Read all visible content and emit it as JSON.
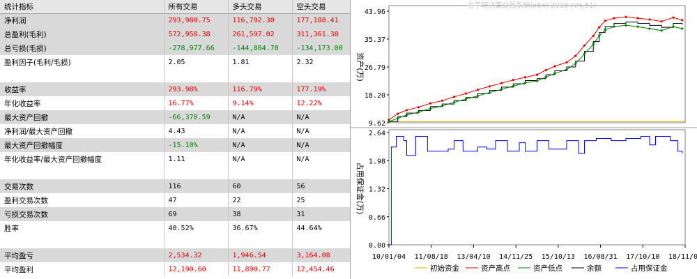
{
  "table": {
    "headers": [
      "统计指标",
      "所有交易",
      "多头交易",
      "空头交易"
    ],
    "rows": [
      {
        "label": "净利润",
        "cells": [
          {
            "v": "293,980.75",
            "c": "red"
          },
          {
            "v": "116,792.30",
            "c": "red"
          },
          {
            "v": "177,188.41",
            "c": "red"
          }
        ],
        "shade": true
      },
      {
        "label": "总盈利(毛利)",
        "cells": [
          {
            "v": "572,958.38",
            "c": "red"
          },
          {
            "v": "261,597.02",
            "c": "red"
          },
          {
            "v": "311,361.38",
            "c": "red"
          }
        ],
        "shade": true
      },
      {
        "label": "总亏损(毛损)",
        "cells": [
          {
            "v": "-278,977.66",
            "c": "green"
          },
          {
            "v": "-144,804.70",
            "c": "green"
          },
          {
            "v": "-134,173.00",
            "c": "green"
          }
        ],
        "shade": true
      },
      {
        "label": "盈利因子(毛利/毛损)",
        "cells": [
          {
            "v": "2.05",
            "c": "black"
          },
          {
            "v": "1.81",
            "c": "black"
          },
          {
            "v": "2.32",
            "c": "black"
          }
        ],
        "shade": false
      },
      {
        "label": "",
        "cells": [
          {
            "v": "",
            "c": "black"
          },
          {
            "v": "",
            "c": "black"
          },
          {
            "v": "",
            "c": "black"
          }
        ],
        "shade": false,
        "blank": true
      },
      {
        "label": "收益率",
        "cells": [
          {
            "v": "293.98%",
            "c": "red"
          },
          {
            "v": "116.79%",
            "c": "red"
          },
          {
            "v": "177.19%",
            "c": "red"
          }
        ],
        "shade": true
      },
      {
        "label": "年化收益率",
        "cells": [
          {
            "v": "16.77%",
            "c": "red"
          },
          {
            "v": "9.14%",
            "c": "red"
          },
          {
            "v": "12.22%",
            "c": "red"
          }
        ],
        "shade": false
      },
      {
        "label": "最大资产回撤",
        "cells": [
          {
            "v": "-66,370.59",
            "c": "green"
          },
          {
            "v": "N/A",
            "c": "black"
          },
          {
            "v": "N/A",
            "c": "black"
          }
        ],
        "shade": true
      },
      {
        "label": "净利润/最大资产回撤",
        "cells": [
          {
            "v": "4.43",
            "c": "black"
          },
          {
            "v": "N/A",
            "c": "black"
          },
          {
            "v": "N/A",
            "c": "black"
          }
        ],
        "shade": false
      },
      {
        "label": "最大资产回撤幅度",
        "cells": [
          {
            "v": "-15.10%",
            "c": "green"
          },
          {
            "v": "N/A",
            "c": "black"
          },
          {
            "v": "N/A",
            "c": "black"
          }
        ],
        "shade": true
      },
      {
        "label": "年化收益率/最大资产回撤幅度",
        "cells": [
          {
            "v": "1.11",
            "c": "black"
          },
          {
            "v": "N/A",
            "c": "black"
          },
          {
            "v": "N/A",
            "c": "black"
          }
        ],
        "shade": false
      },
      {
        "label": "",
        "cells": [
          {
            "v": "",
            "c": "black"
          },
          {
            "v": "",
            "c": "black"
          },
          {
            "v": "",
            "c": "black"
          }
        ],
        "shade": false,
        "blank": true
      },
      {
        "label": "交易次数",
        "cells": [
          {
            "v": "116",
            "c": "black"
          },
          {
            "v": "60",
            "c": "black"
          },
          {
            "v": "56",
            "c": "black"
          }
        ],
        "shade": true
      },
      {
        "label": "盈利交易次数",
        "cells": [
          {
            "v": "47",
            "c": "black"
          },
          {
            "v": "22",
            "c": "black"
          },
          {
            "v": "25",
            "c": "black"
          }
        ],
        "shade": false
      },
      {
        "label": "亏损交易次数",
        "cells": [
          {
            "v": "69",
            "c": "black"
          },
          {
            "v": "38",
            "c": "black"
          },
          {
            "v": "31",
            "c": "black"
          }
        ],
        "shade": true
      },
      {
        "label": "胜率",
        "cells": [
          {
            "v": "40.52%",
            "c": "black"
          },
          {
            "v": "36.67%",
            "c": "black"
          },
          {
            "v": "44.64%",
            "c": "black"
          }
        ],
        "shade": false
      },
      {
        "label": "",
        "cells": [
          {
            "v": "",
            "c": "black"
          },
          {
            "v": "",
            "c": "black"
          },
          {
            "v": "",
            "c": "black"
          }
        ],
        "shade": false,
        "blank": true
      },
      {
        "label": "平均盈亏",
        "cells": [
          {
            "v": "2,534.32",
            "c": "red"
          },
          {
            "v": "1,946.54",
            "c": "red"
          },
          {
            "v": "3,164.08",
            "c": "red"
          }
        ],
        "shade": true
      },
      {
        "label": "平均盈利",
        "cells": [
          {
            "v": "12,190.60",
            "c": "red"
          },
          {
            "v": "11,890.77",
            "c": "red"
          },
          {
            "v": "12,454.46",
            "c": "red"
          }
        ],
        "shade": false
      }
    ]
  },
  "chart": {
    "watermark": "金字塔决策交易系统(x64) 2018 (V4.51)",
    "colors": {
      "initial": "#c8b400",
      "high": "#e00000",
      "low": "#008000",
      "balance": "#000000",
      "margin": "#0000e0"
    },
    "upper_ylabel": "资产(万)",
    "lower_ylabel": "占用保证金(万)",
    "upper_ticks": [
      "43.96",
      "35.37",
      "26.79",
      "18.20",
      "9.62"
    ],
    "lower_ticks": [
      "2.64",
      "1.98",
      "1.32",
      "0.66",
      "0.00"
    ],
    "x_ticks": [
      "10/01/04",
      "11/08/18",
      "13/04/10",
      "14/11/25",
      "15/10/13",
      "16/08/31",
      "17/10/10",
      "18/11/08"
    ],
    "legend": [
      {
        "key": "initial",
        "label": "初始资金",
        "icon": "line-icon"
      },
      {
        "key": "high",
        "label": "资产高点",
        "icon": "line-icon"
      },
      {
        "key": "low",
        "label": "资产低点",
        "icon": "line-icon"
      },
      {
        "key": "balance",
        "label": "余额",
        "icon": "line-icon"
      },
      {
        "key": "margin",
        "label": "占用保证金",
        "icon": "line-icon"
      }
    ]
  },
  "chart_data": {
    "type": "line",
    "panels": [
      {
        "name": "资产",
        "ylabel": "资产(万)",
        "ylim": [
          9.62,
          43.96
        ],
        "series": [
          {
            "name": "初始资金",
            "values": [
              [
                0,
                10.0
              ],
              [
                1,
                10.0
              ]
            ]
          },
          {
            "name": "余额",
            "values": [
              [
                0.0,
                10.0
              ],
              [
                0.03,
                11.5
              ],
              [
                0.06,
                12.6
              ],
              [
                0.1,
                13.4
              ],
              [
                0.14,
                14.6
              ],
              [
                0.18,
                15.4
              ],
              [
                0.22,
                16.4
              ],
              [
                0.26,
                17.4
              ],
              [
                0.3,
                18.6
              ],
              [
                0.34,
                19.6
              ],
              [
                0.38,
                20.6
              ],
              [
                0.42,
                21.6
              ],
              [
                0.46,
                22.6
              ],
              [
                0.5,
                23.2
              ],
              [
                0.53,
                24.4
              ],
              [
                0.56,
                25.6
              ],
              [
                0.6,
                26.8
              ],
              [
                0.63,
                28.6
              ],
              [
                0.66,
                31.6
              ],
              [
                0.69,
                34.6
              ],
              [
                0.71,
                37.4
              ],
              [
                0.73,
                39.2
              ],
              [
                0.76,
                40.2
              ],
              [
                0.8,
                40.6
              ],
              [
                0.84,
                40.2
              ],
              [
                0.88,
                39.6
              ],
              [
                0.92,
                39.0
              ],
              [
                0.96,
                40.2
              ],
              [
                0.99,
                39.8
              ]
            ]
          },
          {
            "name": "资产高点",
            "values": [
              [
                0.0,
                10.5
              ],
              [
                0.03,
                12.4
              ],
              [
                0.06,
                13.5
              ],
              [
                0.1,
                14.4
              ],
              [
                0.14,
                15.6
              ],
              [
                0.18,
                16.4
              ],
              [
                0.22,
                17.6
              ],
              [
                0.26,
                18.6
              ],
              [
                0.3,
                19.8
              ],
              [
                0.34,
                20.8
              ],
              [
                0.38,
                21.8
              ],
              [
                0.42,
                22.8
              ],
              [
                0.46,
                23.6
              ],
              [
                0.5,
                24.4
              ],
              [
                0.53,
                25.8
              ],
              [
                0.56,
                27.0
              ],
              [
                0.6,
                28.2
              ],
              [
                0.63,
                30.2
              ],
              [
                0.66,
                33.4
              ],
              [
                0.69,
                36.4
              ],
              [
                0.71,
                39.0
              ],
              [
                0.73,
                41.0
              ],
              [
                0.76,
                41.8
              ],
              [
                0.8,
                42.2
              ],
              [
                0.84,
                41.8
              ],
              [
                0.88,
                41.4
              ],
              [
                0.92,
                40.8
              ],
              [
                0.96,
                42.0
              ],
              [
                0.99,
                41.2
              ]
            ]
          },
          {
            "name": "资产低点",
            "values": [
              [
                0.0,
                10.0
              ],
              [
                0.03,
                11.0
              ],
              [
                0.06,
                12.0
              ],
              [
                0.1,
                12.9
              ],
              [
                0.14,
                14.0
              ],
              [
                0.18,
                14.8
              ],
              [
                0.22,
                15.9
              ],
              [
                0.26,
                16.9
              ],
              [
                0.3,
                17.9
              ],
              [
                0.34,
                18.9
              ],
              [
                0.38,
                19.9
              ],
              [
                0.42,
                20.9
              ],
              [
                0.46,
                21.9
              ],
              [
                0.5,
                22.5
              ],
              [
                0.53,
                23.7
              ],
              [
                0.56,
                24.8
              ],
              [
                0.6,
                26.0
              ],
              [
                0.63,
                27.8
              ],
              [
                0.66,
                30.8
              ],
              [
                0.69,
                33.8
              ],
              [
                0.71,
                36.4
              ],
              [
                0.73,
                38.2
              ],
              [
                0.76,
                39.2
              ],
              [
                0.8,
                39.6
              ],
              [
                0.84,
                39.2
              ],
              [
                0.88,
                38.6
              ],
              [
                0.92,
                38.0
              ],
              [
                0.96,
                39.2
              ],
              [
                0.99,
                38.6
              ]
            ]
          }
        ]
      },
      {
        "name": "占用保证金",
        "ylabel": "占用保证金(万)",
        "ylim": [
          0.0,
          2.64
        ],
        "series": [
          {
            "name": "占用保证金",
            "values": [
              [
                0.0,
                0.0
              ],
              [
                0.005,
                0.0
              ],
              [
                0.008,
                2.3
              ],
              [
                0.02,
                2.3
              ],
              [
                0.025,
                2.55
              ],
              [
                0.05,
                2.45
              ],
              [
                0.06,
                2.1
              ],
              [
                0.08,
                2.1
              ],
              [
                0.09,
                2.55
              ],
              [
                0.12,
                2.55
              ],
              [
                0.13,
                2.2
              ],
              [
                0.2,
                2.25
              ],
              [
                0.22,
                2.45
              ],
              [
                0.25,
                2.2
              ],
              [
                0.3,
                2.3
              ],
              [
                0.33,
                2.25
              ],
              [
                0.36,
                2.45
              ],
              [
                0.4,
                2.2
              ],
              [
                0.44,
                2.4
              ],
              [
                0.46,
                2.2
              ],
              [
                0.5,
                2.45
              ],
              [
                0.54,
                2.25
              ],
              [
                0.6,
                2.45
              ],
              [
                0.64,
                2.15
              ],
              [
                0.66,
                2.45
              ],
              [
                0.7,
                2.5
              ],
              [
                0.75,
                2.45
              ],
              [
                0.8,
                2.5
              ],
              [
                0.85,
                2.55
              ],
              [
                0.88,
                2.35
              ],
              [
                0.9,
                2.55
              ],
              [
                0.95,
                2.45
              ],
              [
                0.975,
                2.2
              ],
              [
                0.99,
                2.15
              ]
            ]
          }
        ]
      }
    ],
    "x_ticks": [
      "10/01/04",
      "11/08/18",
      "13/04/10",
      "14/11/25",
      "15/10/13",
      "16/08/31",
      "17/10/10",
      "18/11/08"
    ]
  }
}
